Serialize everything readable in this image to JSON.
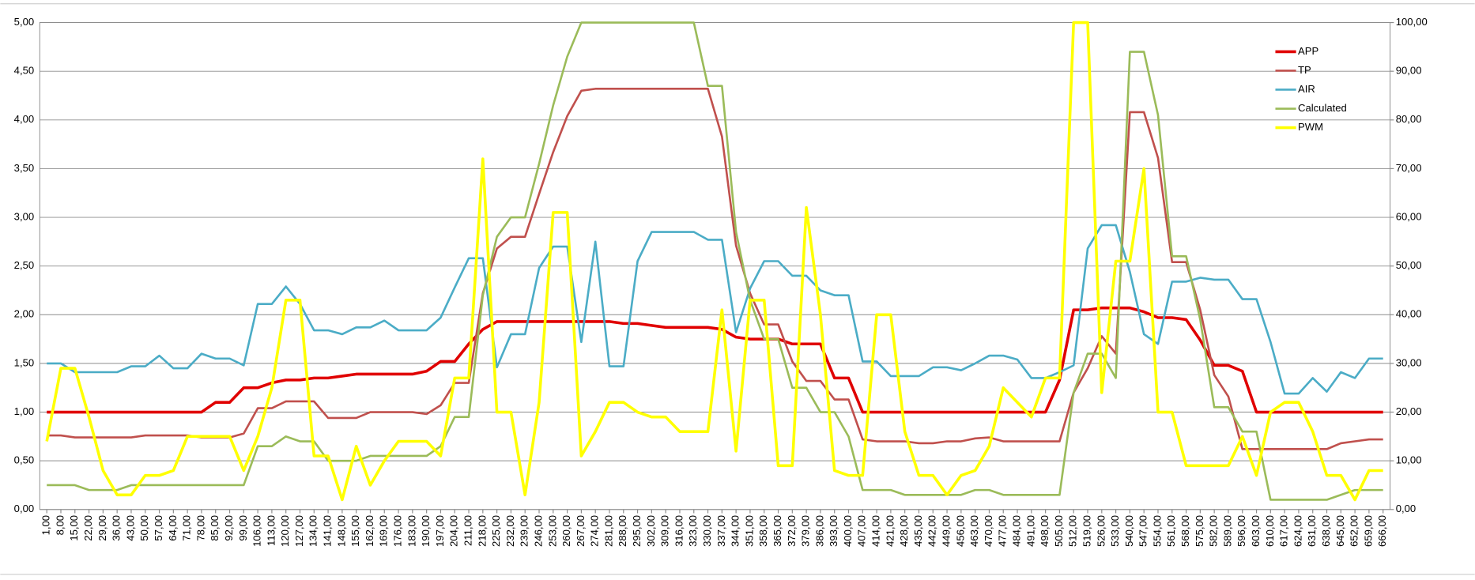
{
  "chart_data": {
    "type": "line",
    "categories": [
      "1,00",
      "8,00",
      "15,00",
      "22,00",
      "29,00",
      "36,00",
      "43,00",
      "50,00",
      "57,00",
      "64,00",
      "71,00",
      "78,00",
      "85,00",
      "92,00",
      "99,00",
      "106,00",
      "113,00",
      "120,00",
      "127,00",
      "134,00",
      "141,00",
      "148,00",
      "155,00",
      "162,00",
      "169,00",
      "176,00",
      "183,00",
      "190,00",
      "197,00",
      "204,00",
      "211,00",
      "218,00",
      "225,00",
      "232,00",
      "239,00",
      "246,00",
      "253,00",
      "260,00",
      "267,00",
      "274,00",
      "281,00",
      "288,00",
      "295,00",
      "302,00",
      "309,00",
      "316,00",
      "323,00",
      "330,00",
      "337,00",
      "344,00",
      "351,00",
      "358,00",
      "365,00",
      "372,00",
      "379,00",
      "386,00",
      "393,00",
      "400,00",
      "407,00",
      "414,00",
      "421,00",
      "428,00",
      "435,00",
      "442,00",
      "449,00",
      "456,00",
      "463,00",
      "470,00",
      "477,00",
      "484,00",
      "491,00",
      "498,00",
      "505,00",
      "512,00",
      "519,00",
      "526,00",
      "533,00",
      "540,00",
      "547,00",
      "554,00",
      "561,00",
      "568,00",
      "575,00",
      "582,00",
      "589,00",
      "596,00",
      "603,00",
      "610,00",
      "617,00",
      "624,00",
      "631,00",
      "638,00",
      "645,00",
      "652,00",
      "659,00",
      "666,00"
    ],
    "series": [
      {
        "name": "APP",
        "color": "#e00000",
        "width": 3,
        "values": [
          1,
          1,
          1,
          1,
          1,
          1,
          1,
          1,
          1,
          1,
          1,
          1,
          1.1,
          1.1,
          1.25,
          1.25,
          1.3,
          1.33,
          1.33,
          1.35,
          1.35,
          1.37,
          1.39,
          1.39,
          1.39,
          1.39,
          1.39,
          1.42,
          1.52,
          1.52,
          1.7,
          1.85,
          1.93,
          1.93,
          1.93,
          1.93,
          1.93,
          1.93,
          1.93,
          1.93,
          1.93,
          1.91,
          1.91,
          1.89,
          1.87,
          1.87,
          1.87,
          1.87,
          1.85,
          1.77,
          1.75,
          1.75,
          1.75,
          1.7,
          1.7,
          1.7,
          1.35,
          1.35,
          1,
          1,
          1,
          1,
          1,
          1,
          1,
          1,
          1,
          1,
          1,
          1,
          1,
          1,
          1.33,
          2.05,
          2.05,
          2.07,
          2.07,
          2.07,
          2.03,
          1.97,
          1.97,
          1.95,
          1.74,
          1.48,
          1.48,
          1.42,
          1,
          1,
          1,
          1,
          1,
          1,
          1,
          1,
          1,
          1
        ]
      },
      {
        "name": "TP",
        "color": "#c0504d",
        "width": 2.2,
        "values": [
          0.76,
          0.76,
          0.74,
          0.74,
          0.74,
          0.74,
          0.74,
          0.76,
          0.76,
          0.76,
          0.76,
          0.74,
          0.74,
          0.74,
          0.78,
          1.04,
          1.04,
          1.11,
          1.11,
          1.11,
          0.94,
          0.94,
          0.94,
          1,
          1,
          1,
          1,
          0.98,
          1.07,
          1.3,
          1.3,
          2.22,
          2.68,
          2.8,
          2.8,
          3.24,
          3.67,
          4.04,
          4.3,
          4.32,
          4.32,
          4.32,
          4.32,
          4.32,
          4.32,
          4.32,
          4.32,
          4.32,
          3.83,
          2.71,
          2.22,
          1.9,
          1.9,
          1.52,
          1.32,
          1.32,
          1.13,
          1.13,
          0.72,
          0.7,
          0.7,
          0.7,
          0.68,
          0.68,
          0.7,
          0.7,
          0.73,
          0.74,
          0.7,
          0.7,
          0.7,
          0.7,
          0.7,
          1.2,
          1.45,
          1.78,
          1.6,
          4.08,
          4.08,
          3.61,
          2.54,
          2.54,
          2.05,
          1.38,
          1.16,
          0.62,
          0.62,
          0.62,
          0.62,
          0.62,
          0.62,
          0.62,
          0.68,
          0.7,
          0.72,
          0.72
        ]
      },
      {
        "name": "AIR",
        "color": "#4bacc6",
        "width": 2.2,
        "values": [
          1.5,
          1.5,
          1.41,
          1.41,
          1.41,
          1.41,
          1.47,
          1.47,
          1.58,
          1.45,
          1.45,
          1.6,
          1.55,
          1.55,
          1.48,
          2.11,
          2.11,
          2.29,
          2.11,
          1.84,
          1.84,
          1.8,
          1.87,
          1.87,
          1.94,
          1.84,
          1.84,
          1.84,
          1.97,
          2.28,
          2.58,
          2.58,
          1.46,
          1.8,
          1.8,
          2.48,
          2.7,
          2.7,
          1.72,
          2.75,
          1.47,
          1.47,
          2.55,
          2.85,
          2.85,
          2.85,
          2.85,
          2.77,
          2.77,
          1.82,
          2.27,
          2.55,
          2.55,
          2.4,
          2.4,
          2.25,
          2.2,
          2.2,
          1.52,
          1.52,
          1.37,
          1.37,
          1.37,
          1.46,
          1.46,
          1.43,
          1.5,
          1.58,
          1.58,
          1.54,
          1.35,
          1.35,
          1.41,
          1.48,
          2.68,
          2.92,
          2.92,
          2.44,
          1.8,
          1.7,
          2.34,
          2.34,
          2.38,
          2.36,
          2.36,
          2.16,
          2.16,
          1.72,
          1.19,
          1.19,
          1.35,
          1.21,
          1.41,
          1.35,
          1.55,
          1.55
        ]
      },
      {
        "name": "Calculated",
        "color": "#9bbb59",
        "width": 2.2,
        "values": [
          0.25,
          0.25,
          0.25,
          0.2,
          0.2,
          0.2,
          0.25,
          0.25,
          0.25,
          0.25,
          0.25,
          0.25,
          0.25,
          0.25,
          0.25,
          0.65,
          0.65,
          0.75,
          0.7,
          0.7,
          0.5,
          0.5,
          0.5,
          0.55,
          0.55,
          0.55,
          0.55,
          0.55,
          0.65,
          0.95,
          0.95,
          2.2,
          2.8,
          3,
          3,
          3.55,
          4.15,
          4.65,
          5,
          5,
          5,
          5,
          5,
          5,
          5,
          5,
          5,
          4.35,
          4.35,
          2.85,
          2.15,
          1.75,
          1.75,
          1.25,
          1.25,
          1,
          1,
          0.75,
          0.2,
          0.2,
          0.2,
          0.15,
          0.15,
          0.15,
          0.15,
          0.15,
          0.2,
          0.2,
          0.15,
          0.15,
          0.15,
          0.15,
          0.15,
          1.2,
          1.6,
          1.6,
          1.35,
          4.7,
          4.7,
          4.05,
          2.6,
          2.6,
          1.95,
          1.05,
          1.05,
          0.8,
          0.8,
          0.1,
          0.1,
          0.1,
          0.1,
          0.1,
          0.15,
          0.2,
          0.2,
          0.2
        ]
      },
      {
        "name": "PWM",
        "color": "#ffff00",
        "width": 3,
        "axis": "y2",
        "values": [
          14,
          29,
          29,
          19,
          8,
          3,
          3,
          7,
          7,
          8,
          15,
          15,
          15,
          15,
          8,
          15,
          25,
          43,
          43,
          11,
          11,
          2,
          13,
          5,
          10,
          14,
          14,
          14,
          11,
          27,
          27,
          72,
          20,
          20,
          3,
          22,
          61,
          61,
          11,
          16,
          22,
          22,
          20,
          19,
          19,
          16,
          16,
          16,
          41,
          12,
          43,
          43,
          9,
          9,
          62,
          40,
          8,
          7,
          7,
          40,
          40,
          16,
          7,
          7,
          3,
          7,
          8,
          13,
          25,
          22,
          19,
          27,
          27,
          100,
          100,
          24,
          51,
          51,
          70,
          20,
          20,
          9,
          9,
          9,
          9,
          15,
          7,
          20,
          22,
          22,
          16,
          7,
          7,
          2,
          8,
          8
        ]
      }
    ],
    "ylim": [
      0,
      5
    ],
    "yticks": [
      {
        "value": 0,
        "label": "0,00"
      },
      {
        "value": 0.5,
        "label": "0,50"
      },
      {
        "value": 1,
        "label": "1,00"
      },
      {
        "value": 1.5,
        "label": "1,50"
      },
      {
        "value": 2,
        "label": "2,00"
      },
      {
        "value": 2.5,
        "label": "2,50"
      },
      {
        "value": 3,
        "label": "3,00"
      },
      {
        "value": 3.5,
        "label": "3,50"
      },
      {
        "value": 4,
        "label": "4,00"
      },
      {
        "value": 4.5,
        "label": "4,50"
      },
      {
        "value": 5,
        "label": "5,00"
      }
    ],
    "y2lim": [
      0,
      100
    ],
    "y2ticks": [
      {
        "value": 0,
        "label": "0,00"
      },
      {
        "value": 10,
        "label": "10,00"
      },
      {
        "value": 20,
        "label": "20,00"
      },
      {
        "value": 30,
        "label": "30,00"
      },
      {
        "value": 40,
        "label": "40,00"
      },
      {
        "value": 50,
        "label": "50,00"
      },
      {
        "value": 60,
        "label": "60,00"
      },
      {
        "value": 70,
        "label": "70,00"
      },
      {
        "value": 80,
        "label": "80,00"
      },
      {
        "value": 90,
        "label": "90,00"
      },
      {
        "value": 100,
        "label": "100,00"
      }
    ],
    "grid": true,
    "legend": "top-right"
  }
}
